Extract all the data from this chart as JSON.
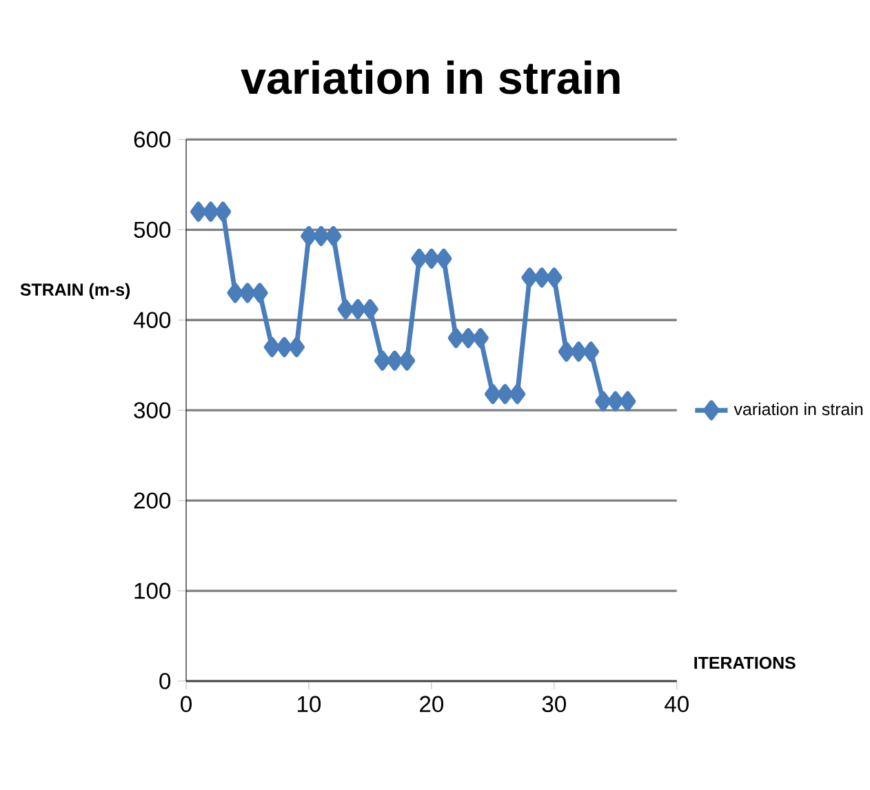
{
  "chart_data": {
    "type": "line",
    "title": "variation in strain",
    "xlabel": "ITERATIONS",
    "ylabel": "STRAIN (m-s)",
    "x": [
      1,
      2,
      3,
      4,
      5,
      6,
      7,
      8,
      9,
      10,
      11,
      12,
      13,
      14,
      15,
      16,
      17,
      18,
      19,
      20,
      21,
      22,
      23,
      24,
      25,
      26,
      27,
      28,
      29,
      30,
      31,
      32,
      33,
      34,
      35,
      36
    ],
    "series": [
      {
        "name": "variation in strain",
        "color": "#4a7ebb",
        "values": [
          520,
          520,
          520,
          430,
          430,
          430,
          370,
          370,
          370,
          493,
          493,
          493,
          412,
          412,
          412,
          355,
          355,
          355,
          468,
          468,
          468,
          380,
          380,
          380,
          318,
          318,
          318,
          447,
          447,
          447,
          365,
          365,
          365,
          310,
          310,
          310
        ]
      }
    ],
    "xlim": [
      0,
      40
    ],
    "xticks": [
      0,
      10,
      20,
      30,
      40
    ],
    "ylim": [
      0,
      600
    ],
    "yticks": [
      0,
      100,
      200,
      300,
      400,
      500,
      600
    ],
    "grid": "y",
    "legend": "right",
    "marker": "diamond",
    "line_style": "solid"
  }
}
